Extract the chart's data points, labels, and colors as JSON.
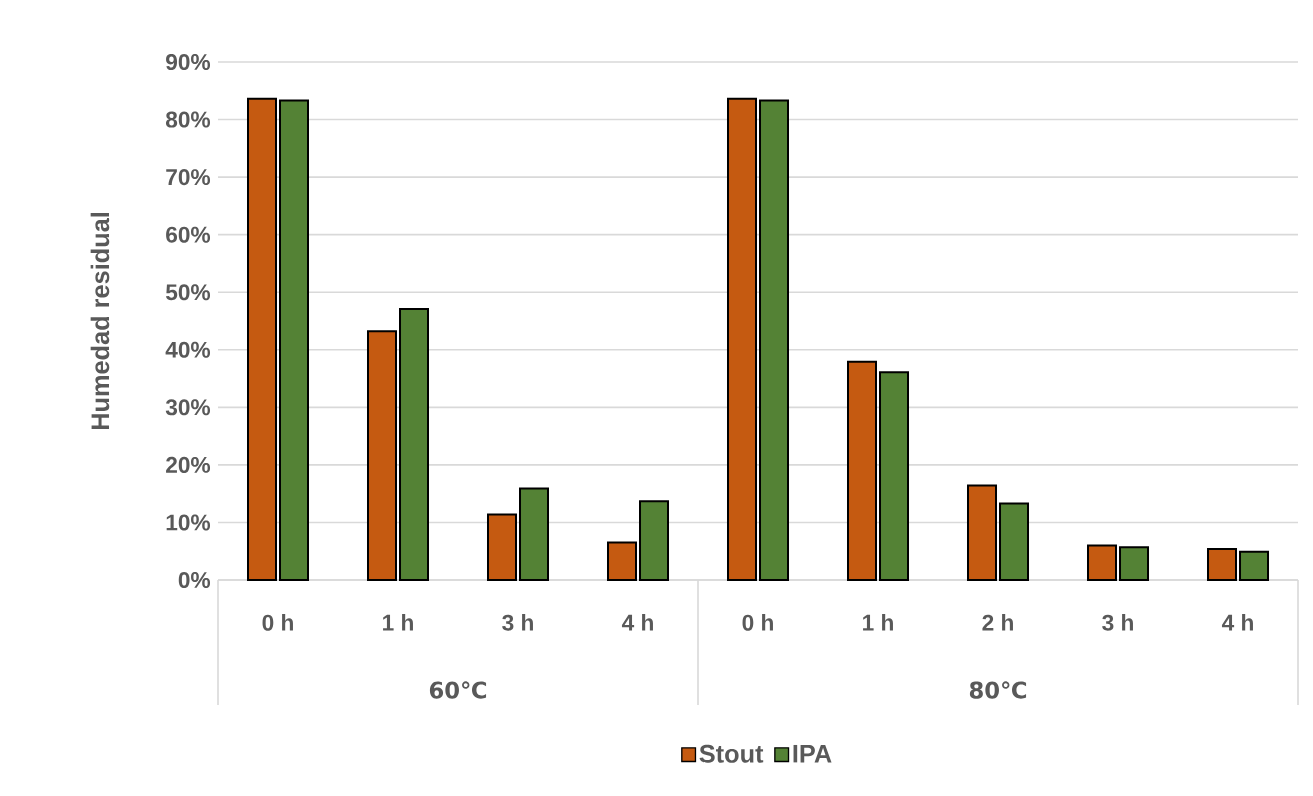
{
  "chart_data": {
    "type": "bar",
    "ylabel": "Humedad residual",
    "categories": [
      "0 h",
      "1 h",
      "3 h",
      "4 h",
      "0 h",
      "1 h",
      "2 h",
      "3 h",
      "4 h"
    ],
    "annotations": [
      "60℃",
      "80℃"
    ],
    "series": [
      {
        "name": "Stout",
        "color": "#c55a11",
        "values": [
          83.6,
          43.2,
          11.4,
          6.5,
          83.6,
          37.9,
          16.4,
          6.0,
          5.4
        ]
      },
      {
        "name": "IPA",
        "color": "#548235",
        "values": [
          83.3,
          47.1,
          15.9,
          13.7,
          83.3,
          36.1,
          13.3,
          5.7,
          4.9
        ]
      }
    ],
    "ylim": [
      0,
      90
    ],
    "yticks": [
      {
        "value": 0,
        "label": "0%"
      },
      {
        "value": 10,
        "label": "10%"
      },
      {
        "value": 20,
        "label": "20%"
      },
      {
        "value": 30,
        "label": "30%"
      },
      {
        "value": 40,
        "label": "40%"
      },
      {
        "value": 50,
        "label": "50%"
      },
      {
        "value": 60,
        "label": "60%"
      },
      {
        "value": 70,
        "label": "70%"
      },
      {
        "value": 80,
        "label": "80%"
      },
      {
        "value": 90,
        "label": "90%"
      }
    ],
    "grid": "y",
    "legend": "bottom"
  }
}
